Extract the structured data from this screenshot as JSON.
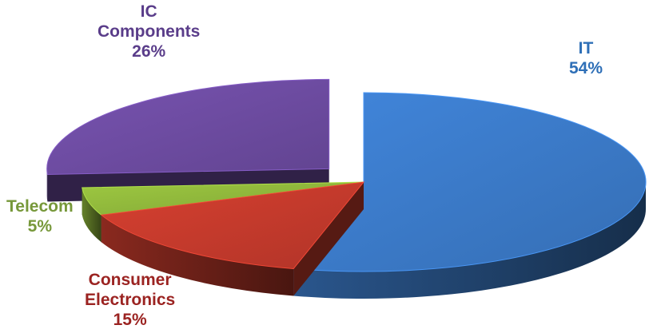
{
  "chart_data": {
    "type": "pie",
    "variant": "3d-exploded",
    "categories": [
      "IT",
      "Consumer Electronics",
      "Telecom",
      "IC Components"
    ],
    "values": [
      54,
      15,
      5,
      26
    ],
    "unit": "%",
    "colors": [
      "#3a78c4",
      "#c0392b",
      "#8cb33a",
      "#6b4a9e"
    ],
    "label_colors": [
      "#2e6fb7",
      "#9b2321",
      "#77983a",
      "#5a3d8a"
    ],
    "exploded": [
      "IC Components"
    ],
    "legend": "none",
    "data_labels": [
      {
        "line1": "IT",
        "line2": "",
        "value": "54%"
      },
      {
        "line1": "Consumer",
        "line2": "Electronics",
        "value": "15%"
      },
      {
        "line1": "Telecom",
        "line2": "",
        "value": "5%"
      },
      {
        "line1": "IC",
        "line2": "Components",
        "value": "26%"
      }
    ]
  }
}
